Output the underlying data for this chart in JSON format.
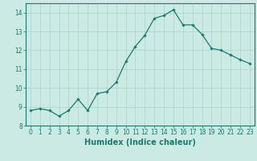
{
  "x": [
    0,
    1,
    2,
    3,
    4,
    5,
    6,
    7,
    8,
    9,
    10,
    11,
    12,
    13,
    14,
    15,
    16,
    17,
    18,
    19,
    20,
    21,
    22,
    23
  ],
  "y": [
    8.8,
    8.9,
    8.8,
    8.5,
    8.8,
    9.4,
    8.8,
    9.7,
    9.8,
    10.3,
    11.4,
    12.2,
    12.8,
    13.7,
    13.85,
    14.15,
    13.35,
    13.35,
    12.85,
    12.1,
    12.0,
    11.75,
    11.5,
    11.3
  ],
  "line_color": "#1a7a6e",
  "marker": "D",
  "marker_size": 1.8,
  "bg_color": "#cceae4",
  "grid_color": "#aad4cc",
  "tick_color": "#1a7a6e",
  "label_color": "#1a7a6e",
  "xlabel": "Humidex (Indice chaleur)",
  "ylim": [
    8,
    14.5
  ],
  "yticks": [
    8,
    9,
    10,
    11,
    12,
    13,
    14
  ],
  "xlim": [
    -0.5,
    23.5
  ],
  "xticks": [
    0,
    1,
    2,
    3,
    4,
    5,
    6,
    7,
    8,
    9,
    10,
    11,
    12,
    13,
    14,
    15,
    16,
    17,
    18,
    19,
    20,
    21,
    22,
    23
  ],
  "xtick_labels": [
    "0",
    "1",
    "2",
    "3",
    "4",
    "5",
    "6",
    "7",
    "8",
    "9",
    "10",
    "11",
    "12",
    "13",
    "14",
    "15",
    "16",
    "17",
    "18",
    "19",
    "20",
    "21",
    "22",
    "23"
  ],
  "font_size": 5.5,
  "xlabel_size": 7.0
}
